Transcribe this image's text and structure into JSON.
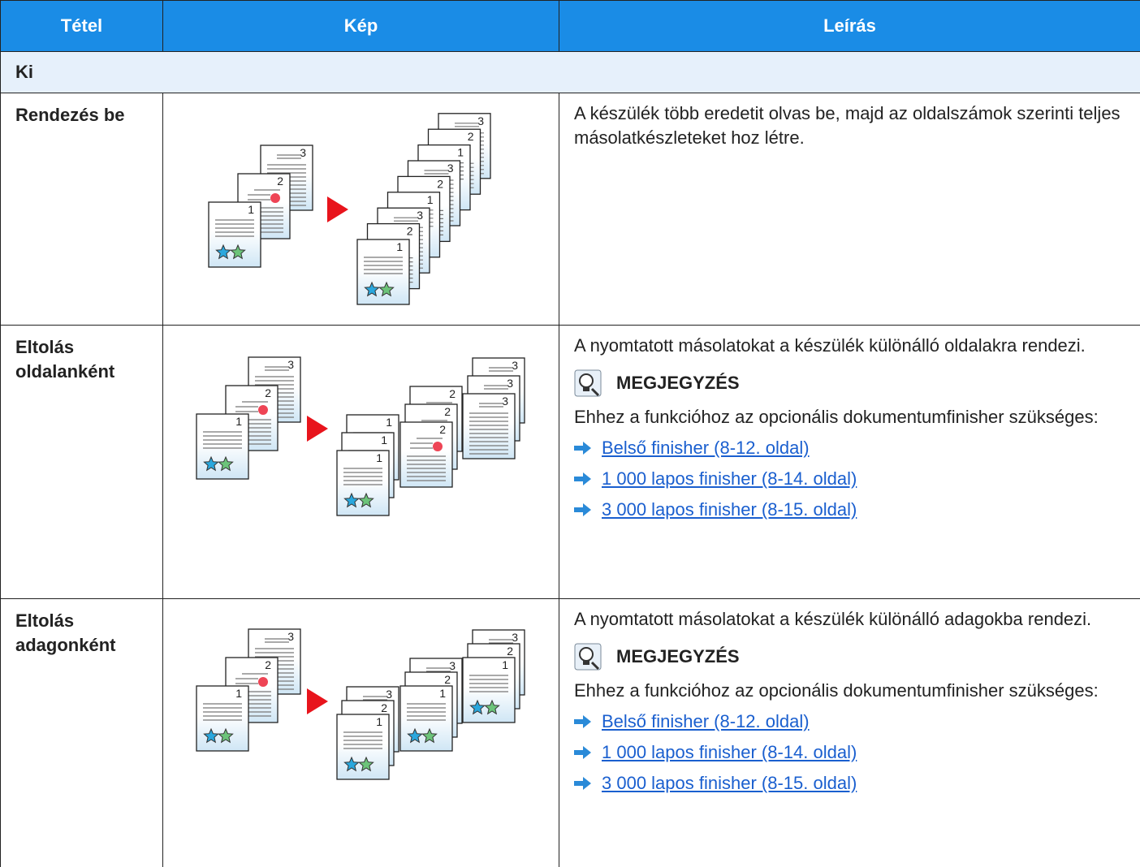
{
  "table": {
    "header": [
      "Tétel",
      "Kép",
      "Leírás"
    ],
    "section": "Ki",
    "rows": [
      {
        "item": "Rendezés be",
        "description": "A készülék több eredetit olvas be, majd az oldalszámok szerinti teljes másolatkészleteket hoz létre."
      },
      {
        "item": "Eltolás oldalanként",
        "description": "A nyomtatott másolatokat a készülék különálló oldalakra rendezi.",
        "note": {
          "title": "MEGJEGYZÉS",
          "text": "Ehhez a funkcióhoz az opcionális dokumentumfinisher szükséges:",
          "links": [
            "Belső finisher (8-12. oldal)",
            "1 000 lapos finisher (8-14. oldal)",
            "3 000 lapos finisher (8-15. oldal)"
          ]
        }
      },
      {
        "item": "Eltolás adagonként",
        "description": "A nyomtatott másolatokat a készülék különálló adagokba rendezi.",
        "note": {
          "title": "MEGJEGYZÉS",
          "text": "Ehhez a funkcióhoz az opcionális dokumentumfinisher szükséges:",
          "links": [
            "Belső finisher (8-12. oldal)",
            "1 000 lapos finisher (8-14. oldal)",
            "3 000 lapos finisher (8-15. oldal)"
          ]
        }
      }
    ]
  },
  "illustration_page_numbers": [
    "1",
    "2",
    "3"
  ]
}
